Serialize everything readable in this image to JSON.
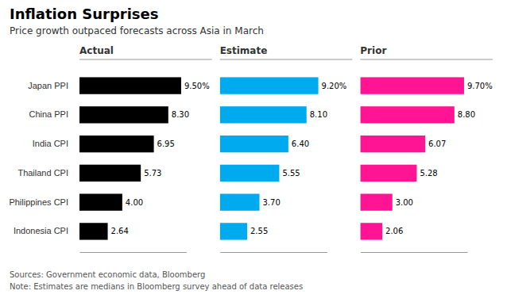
{
  "chart_data": {
    "type": "bar",
    "orientation": "horizontal",
    "title": "Inflation Surprises",
    "subtitle": "Price growth outpaced forecasts across Asia in March",
    "categories": [
      "Japan PPI",
      "China PPI",
      "India CPI",
      "Thailand CPI",
      "Philippines CPI",
      "Indonesia CPI"
    ],
    "series": [
      {
        "name": "Actual",
        "color": "#000000",
        "values": [
          9.5,
          8.3,
          6.95,
          5.73,
          4.0,
          2.64
        ],
        "value_labels": [
          "9.50%",
          "8.30",
          "6.95",
          "5.73",
          "4.00",
          "2.64"
        ]
      },
      {
        "name": "Estimate",
        "color": "#00AAEE",
        "values": [
          9.2,
          8.1,
          6.4,
          5.55,
          3.7,
          2.55
        ],
        "value_labels": [
          "9.20%",
          "8.10",
          "6.40",
          "5.55",
          "3.70",
          "2.55"
        ]
      },
      {
        "name": "Prior",
        "color": "#FF1493",
        "values": [
          9.7,
          8.8,
          6.07,
          5.28,
          3.0,
          2.06
        ],
        "value_labels": [
          "9.70%",
          "8.80",
          "6.07",
          "5.28",
          "3.00",
          "2.06"
        ]
      }
    ],
    "xlim": [
      0,
      10
    ],
    "data_labels": true,
    "tick_labels": "y",
    "grid": false,
    "annotations": [
      "Sources: Government economic data, Bloomberg",
      "Note: Estimates are medians in Bloomberg survey ahead of data releases"
    ]
  }
}
